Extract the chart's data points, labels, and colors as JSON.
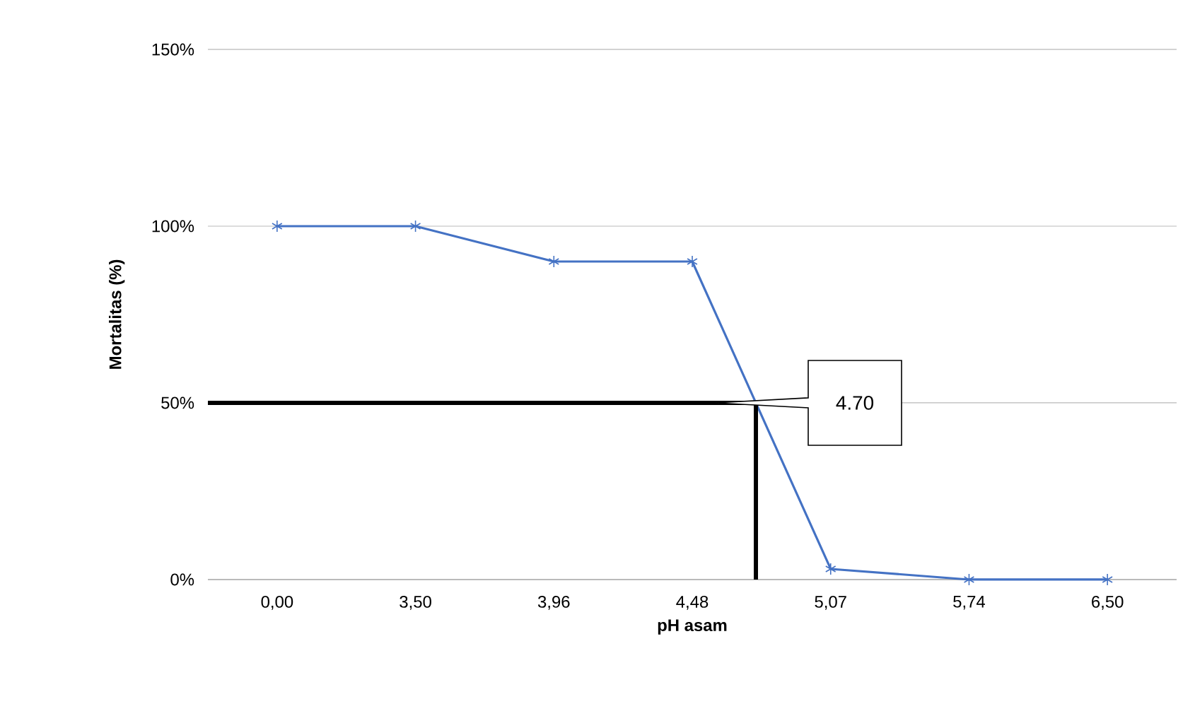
{
  "chart_data": {
    "type": "line",
    "xlabel": "pH   asam",
    "ylabel": "Mortalitas (%)",
    "categories": [
      "0,00",
      "3,50",
      "3,96",
      "4,48",
      "5,07",
      "5,74",
      "6,50"
    ],
    "values": [
      100,
      100,
      90,
      90,
      3,
      0,
      0
    ],
    "color": "#4472c4",
    "marker": "cross",
    "line_style": "solid",
    "ylim": [
      0,
      150
    ],
    "yticks": [
      {
        "value": 0,
        "label": "0%"
      },
      {
        "value": 50,
        "label": "50%"
      },
      {
        "value": 100,
        "label": "100%"
      },
      {
        "value": 150,
        "label": "150%"
      }
    ],
    "grid": "y",
    "ref_lines": [
      {
        "axis": "y",
        "value": 50,
        "color": "#000000"
      }
    ],
    "annotations": [
      "4.70"
    ]
  }
}
